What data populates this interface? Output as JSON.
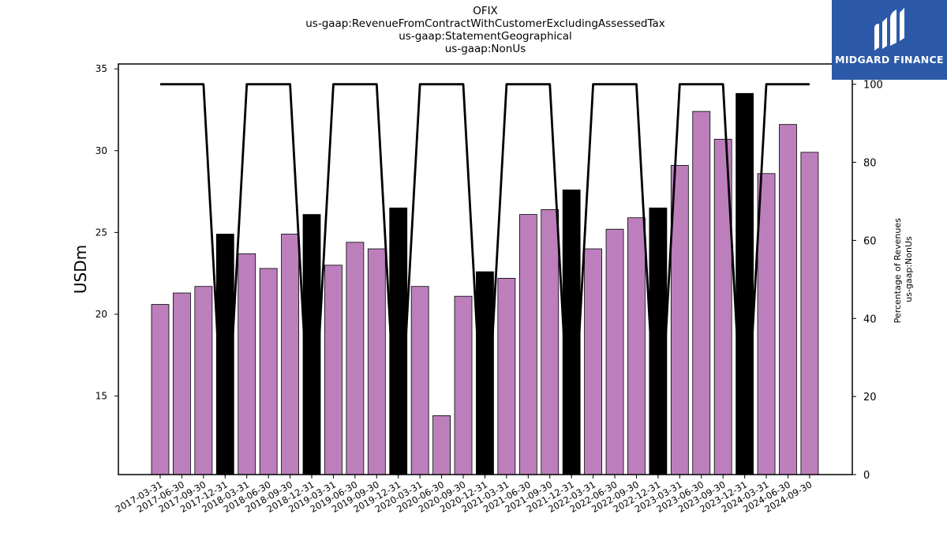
{
  "title_lines": [
    "OFIX",
    "us-gaap:RevenueFromContractWithCustomerExcludingAssessedTax",
    "us-gaap:StatementGeographical",
    "us-gaap:NonUs"
  ],
  "brand": {
    "name": "MIDGARD FINANCE",
    "icon": "midgard-logo-icon",
    "color": "#2c5aa8"
  },
  "chart_data": {
    "type": "bar",
    "categories": [
      "2017-03-31",
      "2017-06-30",
      "2017-09-30",
      "2017-12-31",
      "2018-03-31",
      "2018-06-30",
      "2018-09-30",
      "2018-12-31",
      "2019-03-31",
      "2019-06-30",
      "2019-09-30",
      "2019-12-31",
      "2020-03-31",
      "2020-06-30",
      "2020-09-30",
      "2020-12-31",
      "2021-03-31",
      "2021-06-30",
      "2021-09-30",
      "2021-12-31",
      "2022-03-31",
      "2022-06-30",
      "2022-09-30",
      "2022-12-31",
      "2023-03-31",
      "2023-06-30",
      "2023-09-30",
      "2023-12-31",
      "2024-03-31",
      "2024-06-30",
      "2024-09-30"
    ],
    "values": [
      20.6,
      21.3,
      21.7,
      24.9,
      23.7,
      22.8,
      24.9,
      26.1,
      23.0,
      24.4,
      24.0,
      26.5,
      21.7,
      13.8,
      21.1,
      22.6,
      22.2,
      26.1,
      26.4,
      27.6,
      24.0,
      25.2,
      25.9,
      26.5,
      29.1,
      32.4,
      30.7,
      33.5,
      28.6,
      31.6,
      29.9
    ],
    "highlight_indices": [
      3,
      7,
      11,
      15,
      19,
      23,
      27
    ],
    "bar_color": "#bc7fbc",
    "highlight_color": "#000000",
    "ylabel": "USDm",
    "ylim": [
      10.2,
      35.3
    ],
    "yticks": [
      15,
      20,
      25,
      30,
      35
    ],
    "secondary_series": {
      "name": "Percentage of Revenues us-gaap:NonUs",
      "type": "line",
      "color": "#000000",
      "values": [
        100,
        100,
        100,
        0,
        100,
        100,
        100,
        0,
        100,
        100,
        100,
        0,
        100,
        100,
        100,
        0,
        100,
        100,
        100,
        0,
        100,
        100,
        100,
        0,
        100,
        100,
        100,
        0,
        100,
        100,
        100
      ]
    },
    "y2label_lines": [
      "Percentage of Revenues",
      "us-gaap:NonUs"
    ],
    "y2lim": [
      0,
      100
    ],
    "y2ticks": [
      0,
      20,
      40,
      60,
      80,
      100
    ],
    "grid": false
  }
}
